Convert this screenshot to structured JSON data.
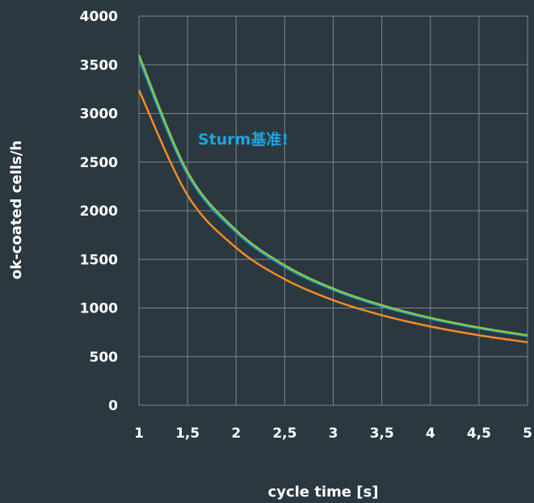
{
  "chart_data": {
    "type": "line",
    "title": "",
    "xlabel": "cycle time [s]",
    "ylabel": "ok-coated cells/h",
    "xlim": [
      1,
      5
    ],
    "ylim": [
      0,
      4000
    ],
    "x_ticks": [
      1,
      1.5,
      2,
      2.5,
      3,
      3.5,
      4,
      4.5,
      5
    ],
    "x_tick_labels": [
      "1",
      "1,5",
      "2",
      "2,5",
      "3",
      "3,5",
      "4",
      "4,5",
      "5"
    ],
    "y_ticks": [
      0,
      500,
      1000,
      1500,
      2000,
      2500,
      3000,
      3500,
      4000
    ],
    "y_tick_labels": [
      "0",
      "500",
      "1000",
      "1500",
      "2000",
      "2500",
      "3000",
      "3500",
      "4000"
    ],
    "grid": true,
    "legend": "none",
    "annotation": {
      "text": "Sturm基准!",
      "color": "#1fa3e0"
    },
    "x": [
      1,
      1.5,
      2,
      2.5,
      3,
      3.5,
      4,
      4.5,
      5
    ],
    "series": [
      {
        "color": "#8dc63f",
        "values": [
          3600,
          2400,
          1800,
          1440,
          1200,
          1029,
          900,
          800,
          720
        ]
      },
      {
        "color": "#1f9bd8",
        "values": [
          3560,
          2373,
          1780,
          1424,
          1187,
          1017,
          890,
          791,
          712
        ]
      },
      {
        "color": "#f28c28",
        "values": [
          3240,
          2160,
          1620,
          1296,
          1080,
          926,
          810,
          720,
          648
        ]
      }
    ]
  }
}
